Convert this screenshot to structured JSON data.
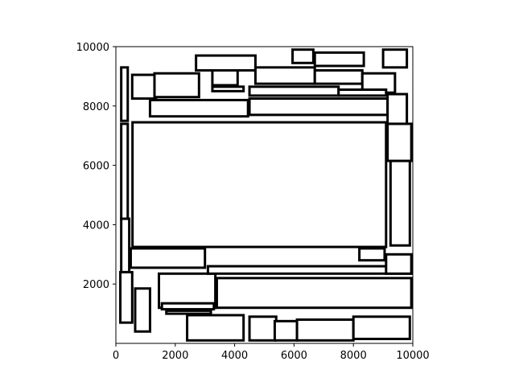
{
  "chart_data": {
    "type": "rectangle_packing",
    "xlim": [
      0,
      10000
    ],
    "ylim": [
      0,
      10000
    ],
    "x_ticks": [
      0,
      2000,
      4000,
      6000,
      8000,
      10000
    ],
    "y_ticks": [
      2000,
      4000,
      6000,
      8000,
      10000
    ],
    "x_tick_labels": [
      "0",
      "2000",
      "4000",
      "6000",
      "8000",
      "10000"
    ],
    "y_tick_labels": [
      "2000",
      "4000",
      "6000",
      "8000",
      "10000"
    ],
    "grid": false,
    "legend": "none",
    "edge_color": "#000000",
    "face_color": "#ffffff",
    "note_rects_are": "[x0, y0, x1, y1] in data units; approximate reading of the most prominent rectangles",
    "rects": [
      [
        560,
        3250,
        9100,
        7450
      ],
      [
        3400,
        1200,
        9950,
        2200
      ],
      [
        1150,
        7650,
        4450,
        8200
      ],
      [
        4500,
        7700,
        9150,
        8250
      ],
      [
        550,
        8250,
        1350,
        9050
      ],
      [
        3250,
        8700,
        4100,
        9500
      ],
      [
        6700,
        9350,
        8350,
        9800
      ],
      [
        9000,
        9300,
        9800,
        9900
      ],
      [
        5950,
        9450,
        6650,
        9900
      ],
      [
        2400,
        100,
        4300,
        950
      ],
      [
        4500,
        100,
        5400,
        900
      ],
      [
        5350,
        100,
        6100,
        750
      ],
      [
        6100,
        100,
        8000,
        800
      ],
      [
        8000,
        150,
        9900,
        900
      ],
      [
        650,
        400,
        1150,
        1850
      ],
      [
        1450,
        1200,
        3350,
        2350
      ],
      [
        1550,
        1150,
        3300,
        1350
      ],
      [
        1700,
        1000,
        3200,
        1100
      ],
      [
        3100,
        2350,
        9950,
        2600
      ],
      [
        500,
        2550,
        3000,
        3200
      ],
      [
        9100,
        2350,
        9950,
        3000
      ],
      [
        8200,
        2800,
        9050,
        3200
      ],
      [
        9250,
        3300,
        9900,
        6150
      ],
      [
        9150,
        6150,
        9950,
        7400
      ],
      [
        9150,
        7400,
        9800,
        8400
      ],
      [
        180,
        7500,
        400,
        9300
      ],
      [
        180,
        4200,
        400,
        7400
      ],
      [
        180,
        2400,
        450,
        4200
      ],
      [
        150,
        700,
        550,
        2400
      ],
      [
        1300,
        8300,
        2800,
        9100
      ],
      [
        2700,
        9200,
        4700,
        9700
      ],
      [
        4700,
        8750,
        6700,
        9300
      ],
      [
        6700,
        8750,
        8300,
        9200
      ],
      [
        8300,
        8450,
        9400,
        9100
      ],
      [
        3250,
        8500,
        4300,
        8650
      ],
      [
        4500,
        8350,
        7500,
        8650
      ],
      [
        7500,
        8350,
        9100,
        8550
      ]
    ]
  }
}
